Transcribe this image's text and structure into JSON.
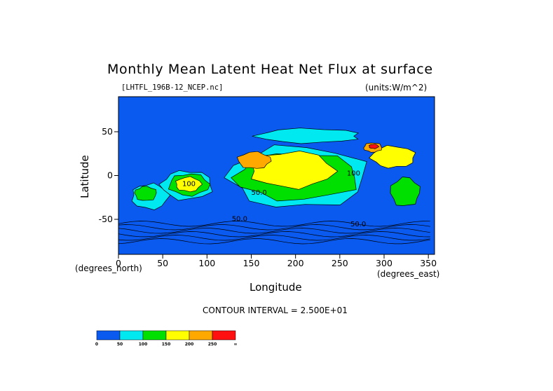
{
  "chart_data": {
    "type": "heatmap",
    "title": "Monthly Mean Latent Heat Net Flux at surface",
    "file_label": "[LHTFL_196B-12_NCEP.nc]",
    "units_label": "(units:W/m^2)",
    "xlabel": "Longitude",
    "ylabel": "Latitude",
    "x_sublabel": "(degrees_east)",
    "y_sublabel": "(degrees_north)",
    "contour_interval_text": "CONTOUR INTERVAL = 2.500E+01",
    "xlim": [
      0,
      357
    ],
    "ylim": [
      -90,
      90
    ],
    "x_ticks": [
      0,
      50,
      100,
      150,
      200,
      250,
      300,
      350
    ],
    "y_ticks": [
      50,
      0,
      -50
    ],
    "contour_labels": [
      "100",
      "50.0",
      "50.0",
      "100",
      "50.0"
    ],
    "colorbar": {
      "levels": [
        "0",
        "50",
        "100",
        "150",
        "200",
        "250",
        "∞"
      ],
      "colors": [
        "#0a5af0",
        "#00e8f0",
        "#00e000",
        "#ffff00",
        "#ffa800",
        "#ff1010"
      ]
    },
    "regions": [
      {
        "color": "#00e8f0",
        "x": [
          10,
          60
        ],
        "y": [
          -40,
          -5
        ]
      },
      {
        "color": "#00e000",
        "x": [
          15,
          45
        ],
        "y": [
          -30,
          -10
        ]
      },
      {
        "color": "#00e8f0",
        "x": [
          40,
          110
        ],
        "y": [
          -30,
          10
        ]
      },
      {
        "color": "#00e000",
        "x": [
          50,
          105
        ],
        "y": [
          -25,
          5
        ]
      },
      {
        "color": "#ffff00",
        "x": [
          60,
          95
        ],
        "y": [
          -20,
          0
        ]
      },
      {
        "color": "#00e8f0",
        "x": [
          100,
          290
        ],
        "y": [
          -45,
          40
        ]
      },
      {
        "color": "#00e000",
        "x": [
          110,
          280
        ],
        "y": [
          -35,
          30
        ]
      },
      {
        "color": "#ffff00",
        "x": [
          135,
          250
        ],
        "y": [
          -20,
          30
        ]
      },
      {
        "color": "#ffa800",
        "x": [
          130,
          175
        ],
        "y": [
          5,
          28
        ]
      },
      {
        "color": "#ffff00",
        "x": [
          280,
          340
        ],
        "y": [
          5,
          35
        ]
      },
      {
        "color": "#ffa800",
        "x": [
          275,
          300
        ],
        "y": [
          25,
          38
        ]
      },
      {
        "color": "#ff1010",
        "x": [
          282,
          295
        ],
        "y": [
          30,
          36
        ]
      },
      {
        "color": "#00e000",
        "x": [
          305,
          345
        ],
        "y": [
          -40,
          0
        ]
      },
      {
        "color": "#00e8f0",
        "x": [
          150,
          290
        ],
        "y": [
          35,
          55
        ]
      }
    ]
  }
}
